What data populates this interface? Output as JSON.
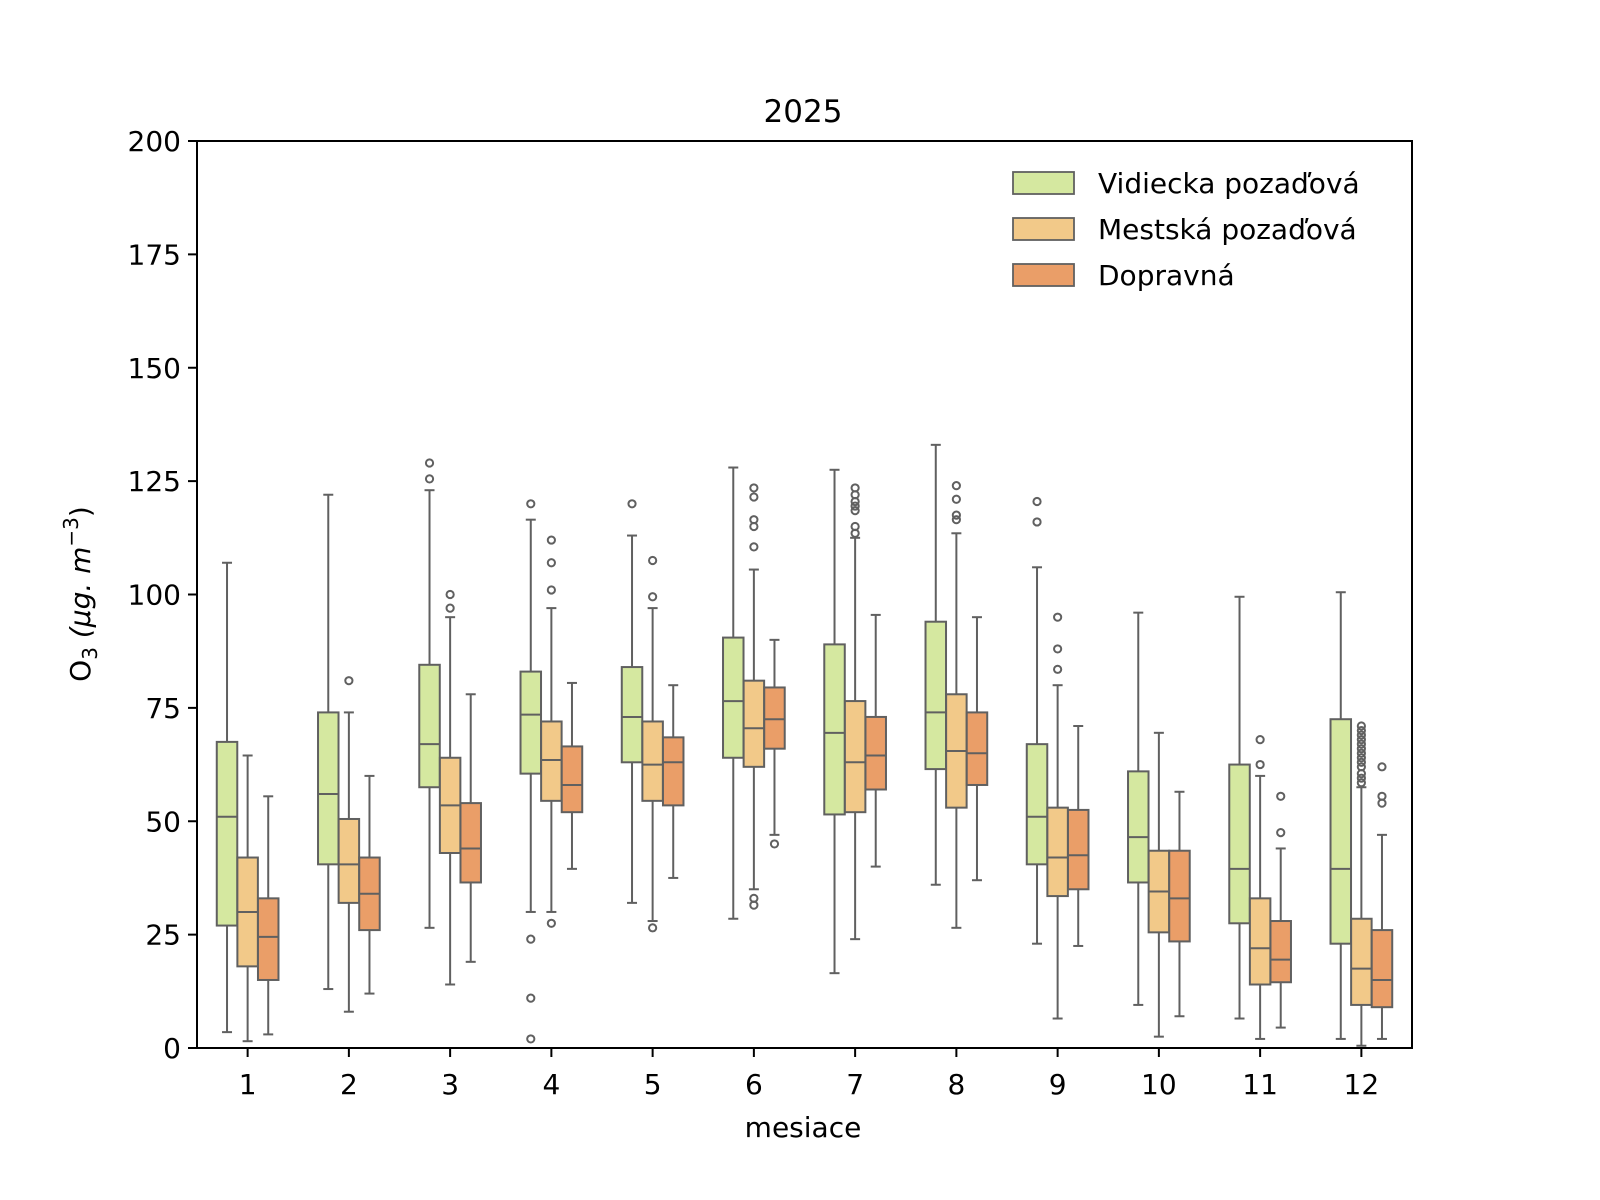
{
  "chart_data": {
    "type": "boxplot",
    "title": "2025",
    "xlabel": "mesiace",
    "ylabel_main": "O",
    "ylabel_sub": "3",
    "ylabel_rest": " (μg. m",
    "ylabel_sup": "−3",
    "ylabel_close": ")",
    "ylim": [
      0,
      200
    ],
    "yticks": [
      0,
      25,
      50,
      75,
      100,
      125,
      150,
      175,
      200
    ],
    "categories": [
      "1",
      "2",
      "3",
      "4",
      "5",
      "6",
      "7",
      "8",
      "9",
      "10",
      "11",
      "12"
    ],
    "legend_position": "top-right",
    "series": [
      {
        "name": "Vidiecka pozaďová",
        "color": "#d5e8a0",
        "boxes": [
          {
            "whislo": 3.5,
            "q1": 27,
            "med": 51,
            "q3": 67.5,
            "whishi": 107,
            "fliers": []
          },
          {
            "whislo": 13,
            "q1": 40.5,
            "med": 56,
            "q3": 74,
            "whishi": 122,
            "fliers": []
          },
          {
            "whislo": 26.5,
            "q1": 57.5,
            "med": 67,
            "q3": 84.5,
            "whishi": 123,
            "fliers": [
              125.5,
              129
            ]
          },
          {
            "whislo": 30,
            "q1": 60.5,
            "med": 73.5,
            "q3": 83,
            "whishi": 116.5,
            "fliers": [
              24,
              11,
              2,
              120
            ]
          },
          {
            "whislo": 32,
            "q1": 63,
            "med": 73,
            "q3": 84,
            "whishi": 113,
            "fliers": [
              120
            ]
          },
          {
            "whislo": 28.5,
            "q1": 64,
            "med": 76.5,
            "q3": 90.5,
            "whishi": 128,
            "fliers": []
          },
          {
            "whislo": 16.5,
            "q1": 51.5,
            "med": 69.5,
            "q3": 89,
            "whishi": 127.5,
            "fliers": []
          },
          {
            "whislo": 36,
            "q1": 61.5,
            "med": 74,
            "q3": 94,
            "whishi": 133,
            "fliers": []
          },
          {
            "whislo": 23,
            "q1": 40.5,
            "med": 51,
            "q3": 67,
            "whishi": 106,
            "fliers": [
              116,
              120.5
            ]
          },
          {
            "whislo": 9.5,
            "q1": 36.5,
            "med": 46.5,
            "q3": 61,
            "whishi": 96,
            "fliers": []
          },
          {
            "whislo": 6.5,
            "q1": 27.5,
            "med": 39.5,
            "q3": 62.5,
            "whishi": 99.5,
            "fliers": []
          },
          {
            "whislo": 2,
            "q1": 23,
            "med": 39.5,
            "q3": 72.5,
            "whishi": 100.5,
            "fliers": []
          }
        ]
      },
      {
        "name": "Mestská pozaďová",
        "color": "#f2c989",
        "boxes": [
          {
            "whislo": 1.5,
            "q1": 18,
            "med": 30,
            "q3": 42,
            "whishi": 64.5,
            "fliers": []
          },
          {
            "whislo": 8,
            "q1": 32,
            "med": 40.5,
            "q3": 50.5,
            "whishi": 74,
            "fliers": [
              81
            ]
          },
          {
            "whislo": 14,
            "q1": 43,
            "med": 53.5,
            "q3": 64,
            "whishi": 95,
            "fliers": [
              97,
              100
            ]
          },
          {
            "whislo": 30,
            "q1": 54.5,
            "med": 63.5,
            "q3": 72,
            "whishi": 97,
            "fliers": [
              27.5,
              101,
              107,
              112
            ]
          },
          {
            "whislo": 28,
            "q1": 54.5,
            "med": 62.5,
            "q3": 72,
            "whishi": 97,
            "fliers": [
              26.5,
              99.5,
              107.5
            ]
          },
          {
            "whislo": 35,
            "q1": 62,
            "med": 70.5,
            "q3": 81,
            "whishi": 105.5,
            "fliers": [
              31.5,
              33,
              110.5,
              115,
              116.5,
              121.5,
              123.5
            ]
          },
          {
            "whislo": 24,
            "q1": 52,
            "med": 63,
            "q3": 76.5,
            "whishi": 112.5,
            "fliers": [
              113.5,
              115,
              118.5,
              119.5,
              120.5,
              122,
              123.5
            ]
          },
          {
            "whislo": 26.5,
            "q1": 53,
            "med": 65.5,
            "q3": 78,
            "whishi": 113.5,
            "fliers": [
              116.5,
              117.5,
              121,
              124
            ]
          },
          {
            "whislo": 6.5,
            "q1": 33.5,
            "med": 42,
            "q3": 53,
            "whishi": 80,
            "fliers": [
              83.5,
              88,
              95
            ]
          },
          {
            "whislo": 2.5,
            "q1": 25.5,
            "med": 34.5,
            "q3": 43.5,
            "whishi": 69.5,
            "fliers": []
          },
          {
            "whislo": 2,
            "q1": 14,
            "med": 22,
            "q3": 33,
            "whishi": 60,
            "fliers": [
              62.5,
              68
            ]
          },
          {
            "whislo": 0.5,
            "q1": 9.5,
            "med": 17.5,
            "q3": 28.5,
            "whishi": 57.5,
            "fliers": [
              58.5,
              59.5,
              60.5,
              62,
              63,
              64,
              65,
              66,
              67,
              68,
              69,
              70,
              71
            ]
          }
        ]
      },
      {
        "name": "Dopravná",
        "color": "#ea9e68",
        "boxes": [
          {
            "whislo": 3,
            "q1": 15,
            "med": 24.5,
            "q3": 33,
            "whishi": 55.5,
            "fliers": []
          },
          {
            "whislo": 12,
            "q1": 26,
            "med": 34,
            "q3": 42,
            "whishi": 60,
            "fliers": []
          },
          {
            "whislo": 19,
            "q1": 36.5,
            "med": 44,
            "q3": 54,
            "whishi": 78,
            "fliers": []
          },
          {
            "whislo": 39.5,
            "q1": 52,
            "med": 58,
            "q3": 66.5,
            "whishi": 80.5,
            "fliers": []
          },
          {
            "whislo": 37.5,
            "q1": 53.5,
            "med": 63,
            "q3": 68.5,
            "whishi": 80,
            "fliers": []
          },
          {
            "whislo": 47,
            "q1": 66,
            "med": 72.5,
            "q3": 79.5,
            "whishi": 90,
            "fliers": [
              45
            ]
          },
          {
            "whislo": 40,
            "q1": 57,
            "med": 64.5,
            "q3": 73,
            "whishi": 95.5,
            "fliers": []
          },
          {
            "whislo": 37,
            "q1": 58,
            "med": 65,
            "q3": 74,
            "whishi": 95,
            "fliers": []
          },
          {
            "whislo": 22.5,
            "q1": 35,
            "med": 42.5,
            "q3": 52.5,
            "whishi": 71,
            "fliers": []
          },
          {
            "whislo": 7,
            "q1": 23.5,
            "med": 33,
            "q3": 43.5,
            "whishi": 56.5,
            "fliers": []
          },
          {
            "whislo": 4.5,
            "q1": 14.5,
            "med": 19.5,
            "q3": 28,
            "whishi": 44,
            "fliers": [
              47.5,
              55.5
            ]
          },
          {
            "whislo": 2,
            "q1": 9,
            "med": 15,
            "q3": 26,
            "whishi": 47,
            "fliers": [
              54,
              55.5,
              62
            ]
          }
        ]
      }
    ]
  }
}
